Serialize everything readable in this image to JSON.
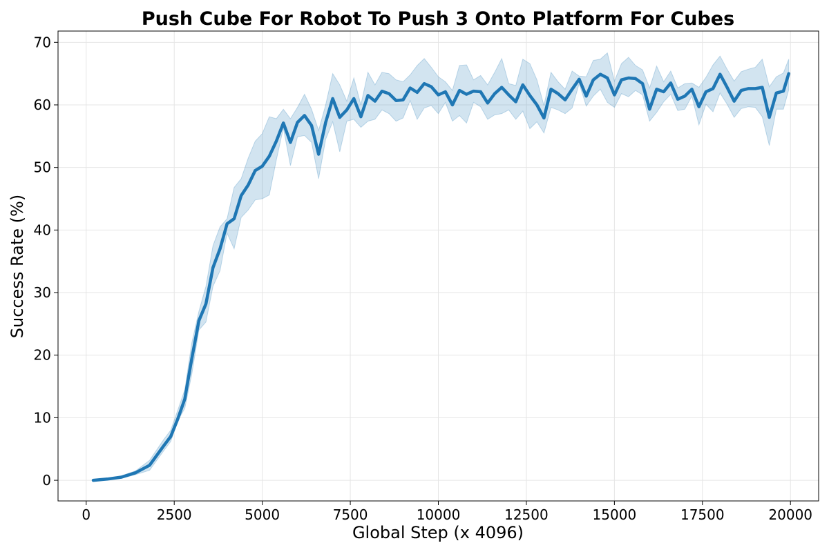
{
  "chart_data": {
    "type": "line",
    "title": "Push Cube For Robot To Push 3 Onto Platform For Cubes",
    "xlabel": "Global Step (x 4096)",
    "ylabel": "Success Rate (%)",
    "xlim": [
      -800,
      20800
    ],
    "ylim": [
      -3.3,
      71.8
    ],
    "xticks": [
      0,
      2500,
      5000,
      7500,
      10000,
      12500,
      15000,
      17500,
      20000
    ],
    "yticks": [
      0,
      10,
      20,
      30,
      40,
      50,
      60,
      70
    ],
    "grid": true,
    "colors": {
      "line": "#1f77b4",
      "band": "#1f77b4"
    },
    "series": [
      {
        "x": [
          200,
          600,
          1000,
          1400,
          1800,
          2200,
          2400,
          2600,
          2800,
          3000,
          3200,
          3400,
          3600,
          3800,
          4000,
          4200,
          4400,
          4600,
          4800,
          5000,
          5200,
          5400,
          5600,
          5800,
          6000,
          6200,
          6400,
          6600,
          6800,
          7000,
          7200,
          7400,
          7600,
          7800,
          8000,
          8200,
          8400,
          8600,
          8800,
          9000,
          9200,
          9400,
          9600,
          9800,
          10000,
          10200,
          10400,
          10600,
          10800,
          11000,
          11200,
          11400,
          11600,
          11800,
          12000,
          12200,
          12400,
          12600,
          12800,
          13000,
          13200,
          13400,
          13600,
          13800,
          14000,
          14200,
          14400,
          14600,
          14800,
          15000,
          15200,
          15400,
          15600,
          15800,
          16000,
          16200,
          16400,
          16600,
          16800,
          17000,
          17200,
          17400,
          17600,
          17800,
          18000,
          18200,
          18400,
          18600,
          18800,
          19000,
          19200,
          19400,
          19600,
          19800,
          19950
        ],
        "y": [
          0.0,
          0.2,
          0.5,
          1.2,
          2.4,
          5.5,
          7.0,
          9.8,
          13.0,
          19.5,
          25.5,
          28.2,
          34.0,
          37.0,
          41.0,
          41.8,
          45.5,
          47.2,
          49.5,
          50.2,
          51.8,
          54.2,
          57.1,
          54.0,
          57.2,
          58.3,
          56.7,
          52.1,
          57.2,
          61.0,
          58.0,
          59.2,
          61.0,
          58.1,
          61.5,
          60.6,
          62.2,
          61.8,
          60.7,
          60.8,
          62.7,
          62.0,
          63.4,
          62.9,
          61.6,
          62.1,
          60.0,
          62.3,
          61.7,
          62.2,
          62.1,
          60.3,
          61.8,
          62.8,
          61.6,
          60.5,
          63.2,
          61.5,
          60.0,
          57.9,
          62.5,
          61.8,
          60.8,
          62.5,
          64.1,
          61.4,
          64.0,
          64.9,
          64.3,
          61.6,
          64.0,
          64.3,
          64.2,
          63.4,
          59.3,
          62.5,
          62.1,
          63.5,
          60.9,
          61.4,
          62.5,
          59.7,
          62.1,
          62.6,
          64.9,
          62.8,
          60.6,
          62.3,
          62.6,
          62.6,
          62.8,
          58.0,
          61.9,
          62.2,
          65.0
        ],
        "upper": [
          0.1,
          0.3,
          0.7,
          1.5,
          3.2,
          6.5,
          8.0,
          11.2,
          14.5,
          22.0,
          27.0,
          31.0,
          37.5,
          40.5,
          41.8,
          46.8,
          48.2,
          51.5,
          54.2,
          55.4,
          58.1,
          57.8,
          59.3,
          57.8,
          59.6,
          61.7,
          59.3,
          55.9,
          60.0,
          65.0,
          63.2,
          60.6,
          64.3,
          60.0,
          65.2,
          63.2,
          65.2,
          65.0,
          64.0,
          63.7,
          64.8,
          66.3,
          67.4,
          66.0,
          64.5,
          63.7,
          62.3,
          66.3,
          66.4,
          64.0,
          64.7,
          63.2,
          65.2,
          67.4,
          63.4,
          63.1,
          67.3,
          66.6,
          64.0,
          59.9,
          65.2,
          63.7,
          62.5,
          65.4,
          64.6,
          64.5,
          67.1,
          67.3,
          68.3,
          63.8,
          66.6,
          67.6,
          66.3,
          65.6,
          62.7,
          66.2,
          63.7,
          65.4,
          62.7,
          63.4,
          63.5,
          62.8,
          64.4,
          66.4,
          67.8,
          65.7,
          63.8,
          65.3,
          65.7,
          66.0,
          67.3,
          62.9,
          64.5,
          65.1,
          67.3
        ],
        "lower": [
          -0.1,
          0.1,
          0.3,
          0.9,
          1.6,
          4.7,
          6.2,
          9.5,
          11.5,
          17.0,
          24.0,
          25.3,
          31.0,
          33.5,
          39.5,
          37.0,
          42.0,
          43.2,
          44.8,
          45.0,
          45.6,
          51.2,
          56.3,
          50.3,
          54.9,
          55.1,
          54.0,
          48.2,
          54.5,
          57.3,
          52.5,
          57.4,
          57.7,
          56.4,
          57.4,
          57.7,
          59.2,
          58.6,
          57.4,
          57.9,
          60.7,
          57.7,
          59.5,
          59.9,
          58.6,
          60.4,
          57.4,
          58.3,
          57.1,
          60.4,
          59.7,
          57.7,
          58.4,
          58.6,
          59.2,
          57.7,
          59.0,
          56.2,
          57.3,
          55.5,
          59.6,
          59.2,
          58.6,
          59.5,
          63.4,
          59.8,
          61.4,
          62.5,
          60.4,
          59.6,
          61.8,
          61.3,
          62.3,
          61.6,
          57.4,
          58.8,
          60.5,
          61.7,
          59.1,
          59.3,
          61.4,
          56.8,
          60.1,
          58.9,
          61.9,
          60.1,
          58.0,
          59.4,
          59.7,
          59.6,
          58.1,
          53.5,
          59.3,
          59.3,
          62.4
        ]
      }
    ]
  }
}
